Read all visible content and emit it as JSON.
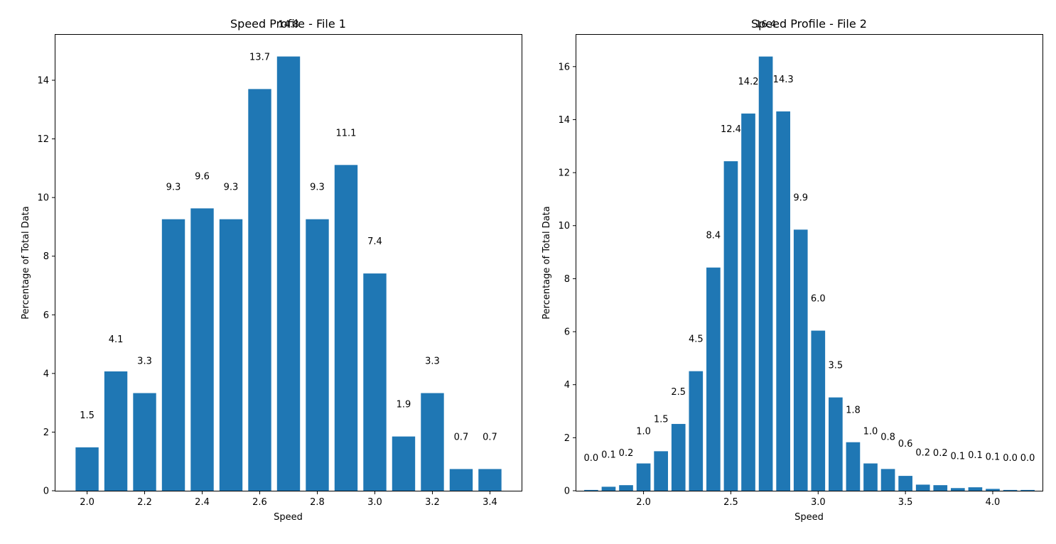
{
  "colors": {
    "bar": "#1f77b4",
    "axis": "#000000",
    "background": "#ffffff"
  },
  "chart_data": [
    {
      "type": "bar",
      "title": "Speed Profile - File 1",
      "xlabel": "Speed",
      "ylabel": "Percentage of Total Data",
      "x": [
        2.0,
        2.1,
        2.2,
        2.3,
        2.4,
        2.5,
        2.6,
        2.7,
        2.8,
        2.9,
        3.0,
        3.1,
        3.2,
        3.3,
        3.4
      ],
      "values": [
        1.48,
        4.07,
        3.33,
        9.26,
        9.63,
        9.26,
        13.7,
        14.81,
        9.26,
        11.11,
        7.41,
        1.85,
        3.33,
        0.74,
        0.74
      ],
      "data_labels": [
        "1.5",
        "4.1",
        "3.3",
        "9.3",
        "9.6",
        "9.3",
        "13.7",
        "14.8",
        "9.3",
        "11.1",
        "7.4",
        "1.9",
        "3.3",
        "0.7",
        "0.7"
      ],
      "bar_width": 0.08,
      "xlim": [
        1.89,
        3.51
      ],
      "ylim": [
        0,
        15.55
      ],
      "xticks": [
        2.0,
        2.2,
        2.4,
        2.6,
        2.8,
        3.0,
        3.2,
        3.4
      ],
      "xtick_labels": [
        "2.0",
        "2.2",
        "2.4",
        "2.6",
        "2.8",
        "3.0",
        "3.2",
        "3.4"
      ],
      "yticks": [
        0,
        2,
        4,
        6,
        8,
        10,
        12,
        14
      ],
      "ytick_labels": [
        "0",
        "2",
        "4",
        "6",
        "8",
        "10",
        "12",
        "14"
      ],
      "grid": false,
      "legend": "none"
    },
    {
      "type": "bar",
      "title": "Speed Profile - File 2",
      "xlabel": "Speed",
      "ylabel": "Percentage of Total Data",
      "x": [
        1.7,
        1.8,
        1.9,
        2.0,
        2.1,
        2.2,
        2.3,
        2.4,
        2.5,
        2.6,
        2.7,
        2.8,
        2.9,
        3.0,
        3.1,
        3.2,
        3.3,
        3.4,
        3.5,
        3.6,
        3.7,
        3.8,
        3.9,
        4.0,
        4.1,
        4.2
      ],
      "values": [
        0.03,
        0.15,
        0.21,
        1.03,
        1.49,
        2.52,
        4.51,
        8.42,
        12.43,
        14.23,
        16.38,
        14.31,
        9.85,
        6.04,
        3.52,
        1.83,
        1.03,
        0.82,
        0.56,
        0.23,
        0.21,
        0.1,
        0.13,
        0.07,
        0.03,
        0.03
      ],
      "data_labels": [
        "0.0",
        "0.1",
        "0.2",
        "1.0",
        "1.5",
        "2.5",
        "4.5",
        "8.4",
        "12.4",
        "14.2",
        "16.4",
        "14.3",
        "9.9",
        "6.0",
        "3.5",
        "1.8",
        "1.0",
        "0.8",
        "0.6",
        "0.2",
        "0.2",
        "0.1",
        "0.1",
        "0.1",
        "0.0",
        "0.0"
      ],
      "bar_width": 0.08,
      "xlim": [
        1.615,
        4.285
      ],
      "ylim": [
        0,
        17.2
      ],
      "xticks": [
        2.0,
        2.5,
        3.0,
        3.5,
        4.0
      ],
      "xtick_labels": [
        "2.0",
        "2.5",
        "3.0",
        "3.5",
        "4.0"
      ],
      "yticks": [
        0,
        2,
        4,
        6,
        8,
        10,
        12,
        14,
        16
      ],
      "ytick_labels": [
        "0",
        "2",
        "4",
        "6",
        "8",
        "10",
        "12",
        "14",
        "16"
      ],
      "grid": false,
      "legend": "none"
    }
  ]
}
